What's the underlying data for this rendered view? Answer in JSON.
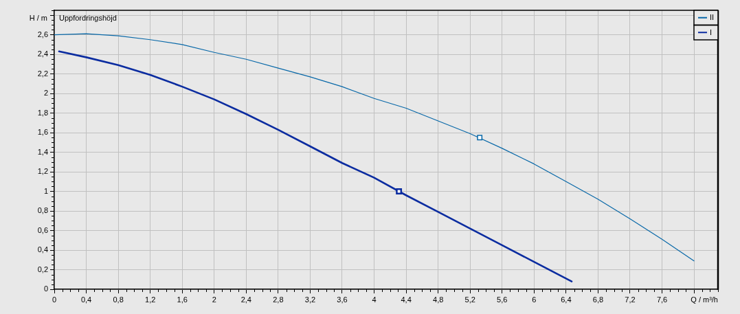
{
  "chart_data": {
    "type": "line",
    "title": "Uppfordringshöjd",
    "xlabel": "Q / m³/h",
    "ylabel": "H / m",
    "xlim": [
      0,
      8.3
    ],
    "xticks": [
      0,
      {
        "value": 0.4,
        "label": "0,4"
      },
      {
        "value": 0.8,
        "label": "0,8"
      },
      {
        "value": 1.2,
        "label": "1,2"
      },
      {
        "value": 1.6,
        "label": "1,6"
      },
      2,
      {
        "value": 2.4,
        "label": "2,4"
      },
      {
        "value": 2.8,
        "label": "2,8"
      },
      {
        "value": 3.2,
        "label": "3,2"
      },
      {
        "value": 3.6,
        "label": "3,6"
      },
      4,
      {
        "value": 4.4,
        "label": "4,4"
      },
      {
        "value": 4.8,
        "label": "4,8"
      },
      {
        "value": 5.2,
        "label": "5,2"
      },
      {
        "value": 5.6,
        "label": "5,6"
      },
      6,
      {
        "value": 6.4,
        "label": "6,4"
      },
      {
        "value": 6.8,
        "label": "6,8"
      },
      {
        "value": 7.2,
        "label": "7,2"
      },
      {
        "value": 7.6,
        "label": "7,6"
      },
      {
        "value": 8,
        "label": null
      }
    ],
    "ylim": [
      0,
      2.85
    ],
    "yticks": [
      0,
      {
        "value": 0.2,
        "label": "0,2"
      },
      {
        "value": 0.4,
        "label": "0,4"
      },
      {
        "value": 0.6,
        "label": "0,6"
      },
      {
        "value": 0.8,
        "label": "0,8"
      },
      1,
      {
        "value": 1.2,
        "label": "1,2"
      },
      {
        "value": 1.4,
        "label": "1,4"
      },
      {
        "value": 1.6,
        "label": "1,6"
      },
      {
        "value": 1.8,
        "label": "1,8"
      },
      2,
      {
        "value": 2.2,
        "label": "2,2"
      },
      {
        "value": 2.4,
        "label": "2,4"
      },
      {
        "value": 2.6,
        "label": "2,6"
      },
      {
        "value": 2.8,
        "label": null
      }
    ],
    "grid": true,
    "legend": "top right",
    "series": [
      {
        "name": "II",
        "color": "#0868a8",
        "x": [
          0,
          0.4,
          0.8,
          1.2,
          1.6,
          2,
          2.4,
          2.8,
          3.2,
          3.6,
          4,
          4.4,
          4.8,
          5.2,
          5.6,
          6,
          6.4,
          6.8,
          7.2,
          7.6,
          8
        ],
        "values": [
          2.6,
          2.61,
          2.59,
          2.55,
          2.5,
          2.42,
          2.35,
          2.26,
          2.17,
          2.07,
          1.95,
          1.85,
          1.72,
          1.59,
          1.44,
          1.28,
          1.1,
          0.92,
          0.72,
          0.51,
          0.29
        ]
      },
      {
        "name": "I",
        "color": "#0b2ca0",
        "x": [
          0.06,
          0.4,
          0.8,
          1.2,
          1.6,
          2,
          2.4,
          2.8,
          3.2,
          3.6,
          4,
          4.4,
          4.8,
          5.2,
          5.6,
          6,
          6.4,
          6.47
        ],
        "values": [
          2.43,
          2.37,
          2.29,
          2.19,
          2.07,
          1.94,
          1.79,
          1.63,
          1.46,
          1.29,
          1.14,
          0.96,
          0.79,
          0.62,
          0.45,
          0.28,
          0.11,
          0.08
        ]
      },
      {
        "type": "scatter",
        "marker": "square",
        "color": "#0868a8",
        "x": [
          5.32
        ],
        "values": [
          1.55
        ]
      },
      {
        "type": "scatter",
        "marker": "square",
        "color": "#0b2ca0",
        "x": [
          4.31
        ],
        "values": [
          1.0
        ]
      }
    ]
  }
}
